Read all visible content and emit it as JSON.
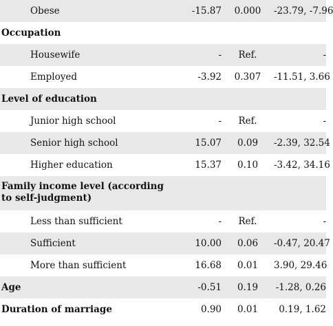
{
  "rows": [
    {
      "type": "sub",
      "label": "Obese",
      "b": "-15.87",
      "p": "0.000",
      "ci": "-23.79, -7.96"
    },
    {
      "type": "head",
      "label": "Occupation"
    },
    {
      "type": "sub",
      "label": "Housewife",
      "b": "-",
      "p": "Ref.",
      "ci": "-"
    },
    {
      "type": "sub",
      "label": "Employed",
      "b": "-3.92",
      "p": "0.307",
      "ci": "-11.51, 3.66"
    },
    {
      "type": "head",
      "label": "Level of education"
    },
    {
      "type": "sub",
      "label": "Junior high school",
      "b": "-",
      "p": "Ref.",
      "ci": "-"
    },
    {
      "type": "sub",
      "label": "Senior high school",
      "b": "15.07",
      "p": "0.09",
      "ci": "-2.39, 32.54"
    },
    {
      "type": "sub",
      "label": "Higher education",
      "b": "15.37",
      "p": "0.10",
      "ci": "-3.42, 34.16"
    },
    {
      "type": "head",
      "label": "Family income level (according to self-judgment)"
    },
    {
      "type": "sub",
      "label": "Less than sufficient",
      "b": "-",
      "p": "Ref.",
      "ci": "-"
    },
    {
      "type": "sub",
      "label": "Sufficient",
      "b": "10.00",
      "p": "0.06",
      "ci": "-0.47, 20.47"
    },
    {
      "type": "sub",
      "label": "More than sufficient",
      "b": "16.68",
      "p": "0.01",
      "ci": "3.90, 29.46"
    },
    {
      "type": "head",
      "label": "Age",
      "b": "-0.51",
      "p": "0.19",
      "ci": "-1.28, 0.26"
    },
    {
      "type": "head",
      "label": "Duration of marriage",
      "b": "0.90",
      "p": "0.01",
      "ci": "0.19, 1.62"
    }
  ]
}
